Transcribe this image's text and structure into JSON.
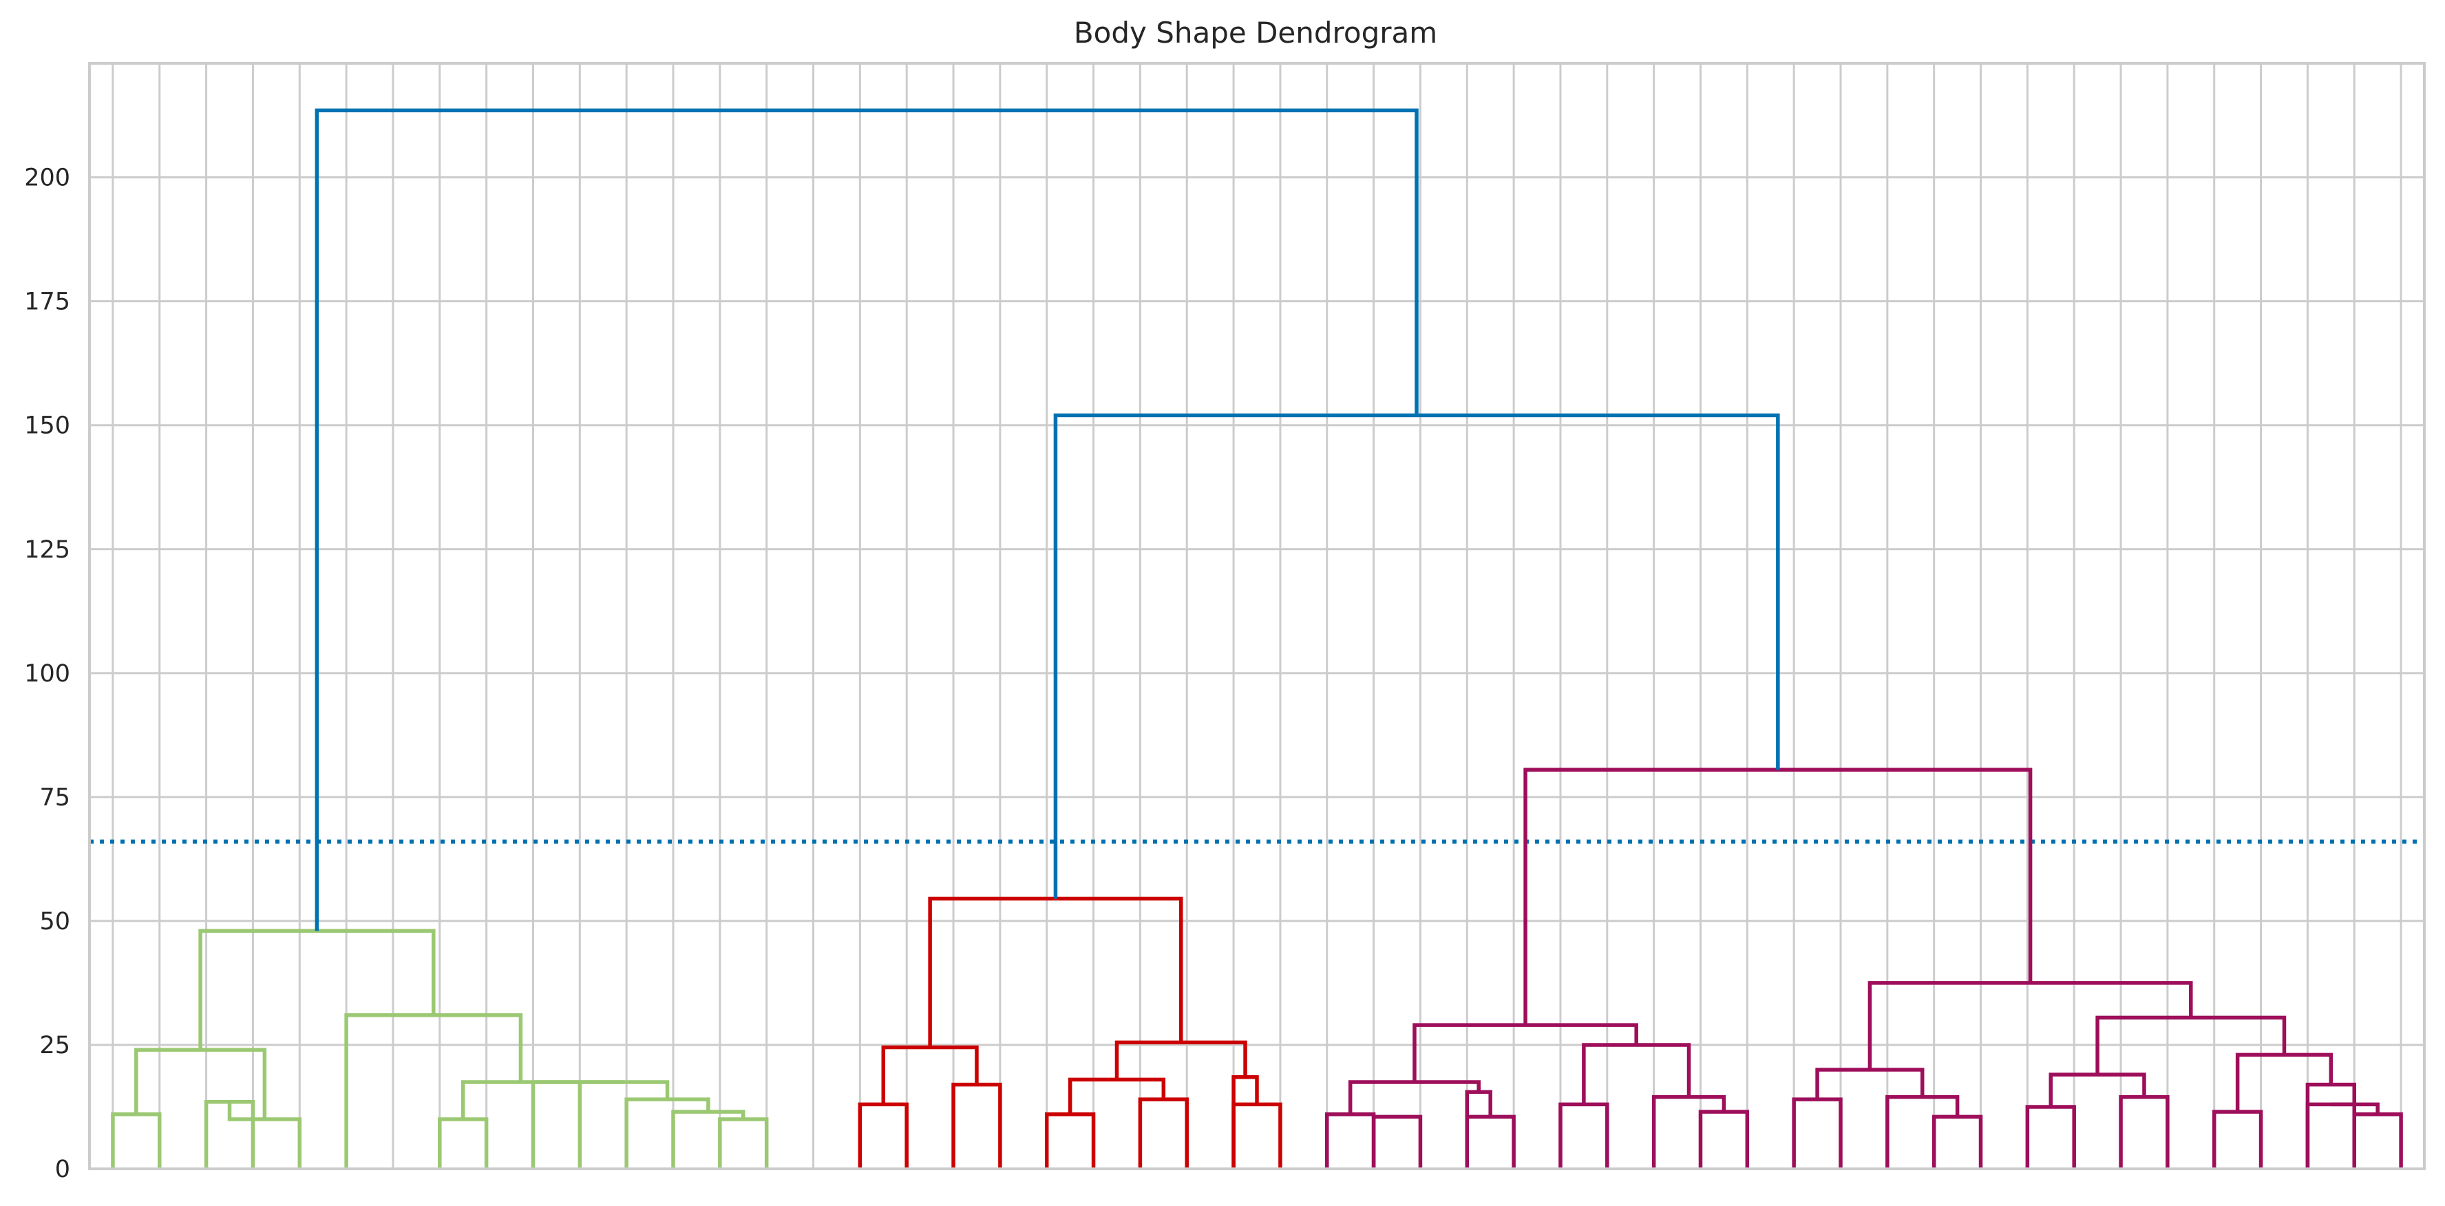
{
  "chart_data": {
    "type": "dendrogram",
    "title": "Body Shape Dendrogram",
    "xlabel": "",
    "ylabel": "",
    "ylim": [
      0,
      223
    ],
    "yticks": [
      0,
      25,
      50,
      75,
      100,
      125,
      150,
      175,
      200
    ],
    "grid": true,
    "leaf_count": 50,
    "threshold": 66,
    "threshold_color": "#0072b2",
    "leaf_labels_visible": false,
    "colors": {
      "above_threshold": "#0072b2",
      "cluster_green": "#9bc872",
      "cluster_red": "#cc0000",
      "cluster_magenta": "#9e0e5a"
    },
    "links": [
      {
        "x": [
          1,
          2
        ],
        "y": 11,
        "yl": 0,
        "yr": 0,
        "color": "cluster_green"
      },
      {
        "x": [
          3,
          4
        ],
        "y": 13.5,
        "yl": 0,
        "yr": 0,
        "color": "cluster_green"
      },
      {
        "x": [
          3.5,
          5
        ],
        "y": 10,
        "yl": 13.5,
        "yr": 0,
        "color": "cluster_green"
      },
      {
        "x": [
          1.5,
          4.25
        ],
        "y": 24,
        "yl": 11,
        "yr": 10,
        "color": "cluster_green"
      },
      {
        "x": [
          8,
          9
        ],
        "y": 10,
        "yl": 0,
        "yr": 0,
        "color": "cluster_green"
      },
      {
        "x": [
          14,
          15
        ],
        "y": 10,
        "yl": 0,
        "yr": 0,
        "color": "cluster_green"
      },
      {
        "x": [
          13,
          14.5
        ],
        "y": 11.5,
        "yl": 0,
        "yr": 10,
        "color": "cluster_green"
      },
      {
        "x": [
          12,
          13.75
        ],
        "y": 14,
        "yl": 0,
        "yr": 11.5,
        "color": "cluster_green"
      },
      {
        "x": [
          11,
          12.875
        ],
        "y": 17.5,
        "yl": 0,
        "yr": 14,
        "color": "cluster_green"
      },
      {
        "x": [
          10,
          11.9375
        ],
        "y": 17.5,
        "yl": 0,
        "yr": 17.5,
        "color": "cluster_green"
      },
      {
        "x": [
          8.5,
          10.96875
        ],
        "y": 17.5,
        "yl": 10,
        "yr": 17.5,
        "color": "cluster_green"
      },
      {
        "x": [
          6,
          9.734375
        ],
        "y": 31,
        "yl": 0,
        "yr": 17.5,
        "color": "cluster_green"
      },
      {
        "x": [
          2.875,
          7.8671875
        ],
        "y": 48,
        "yl": 24,
        "yr": 31,
        "color": "cluster_green"
      },
      {
        "x": [
          17,
          18
        ],
        "y": 13,
        "yl": 0,
        "yr": 0,
        "color": "cluster_red"
      },
      {
        "x": [
          19,
          20
        ],
        "y": 17,
        "yl": 0,
        "yr": 0,
        "color": "cluster_red"
      },
      {
        "x": [
          17.5,
          19.5
        ],
        "y": 24.5,
        "yl": 13,
        "yr": 17,
        "color": "cluster_red"
      },
      {
        "x": [
          21,
          22
        ],
        "y": 11,
        "yl": 0,
        "yr": 0,
        "color": "cluster_red"
      },
      {
        "x": [
          23,
          24
        ],
        "y": 14,
        "yl": 0,
        "yr": 0,
        "color": "cluster_red"
      },
      {
        "x": [
          21.5,
          23.5
        ],
        "y": 18,
        "yl": 11,
        "yr": 14,
        "color": "cluster_red"
      },
      {
        "x": [
          25,
          26
        ],
        "y": 13,
        "yl": 0,
        "yr": 0,
        "color": "cluster_red"
      },
      {
        "x": [
          25,
          25.5
        ],
        "y": 18.5,
        "yl": 0,
        "yr": 13,
        "color": "cluster_red"
      },
      {
        "x": [
          22.5,
          25.25
        ],
        "y": 25.5,
        "yl": 18,
        "yr": 18.5,
        "color": "cluster_red"
      },
      {
        "x": [
          18.5,
          23.875
        ],
        "y": 54.5,
        "yl": 24.5,
        "yr": 25.5,
        "color": "cluster_red"
      },
      {
        "x": [
          27,
          28
        ],
        "y": 11,
        "yl": 0,
        "yr": 0,
        "color": "cluster_magenta"
      },
      {
        "x": [
          28,
          29
        ],
        "y": 10.5,
        "yl": 0,
        "yr": 0,
        "color": "cluster_magenta"
      },
      {
        "x": [
          30,
          31
        ],
        "y": 10.5,
        "yl": 0,
        "yr": 0,
        "color": "cluster_magenta"
      },
      {
        "x": [
          30,
          30.5
        ],
        "y": 15.5,
        "yl": 0,
        "yr": 10.5,
        "color": "cluster_magenta"
      },
      {
        "x": [
          27.5,
          30.25
        ],
        "y": 17.5,
        "yl": 11,
        "yr": 15.5,
        "color": "cluster_magenta"
      },
      {
        "x": [
          32,
          33
        ],
        "y": 13,
        "yl": 0,
        "yr": 0,
        "color": "cluster_magenta"
      },
      {
        "x": [
          35,
          36
        ],
        "y": 11.5,
        "yl": 0,
        "yr": 0,
        "color": "cluster_magenta"
      },
      {
        "x": [
          34,
          35.5
        ],
        "y": 14.5,
        "yl": 0,
        "yr": 11.5,
        "color": "cluster_magenta"
      },
      {
        "x": [
          32.5,
          34.75
        ],
        "y": 25,
        "yl": 13,
        "yr": 14.5,
        "color": "cluster_magenta"
      },
      {
        "x": [
          28.875,
          33.625
        ],
        "y": 29,
        "yl": 17.5,
        "yr": 25,
        "color": "cluster_magenta"
      },
      {
        "x": [
          37,
          38
        ],
        "y": 14,
        "yl": 0,
        "yr": 0,
        "color": "cluster_magenta"
      },
      {
        "x": [
          40,
          41
        ],
        "y": 10.5,
        "yl": 0,
        "yr": 0,
        "color": "cluster_magenta"
      },
      {
        "x": [
          39,
          40.5
        ],
        "y": 14.5,
        "yl": 0,
        "yr": 10.5,
        "color": "cluster_magenta"
      },
      {
        "x": [
          37.5,
          39.75
        ],
        "y": 20,
        "yl": 14,
        "yr": 14.5,
        "color": "cluster_magenta"
      },
      {
        "x": [
          42,
          43
        ],
        "y": 12.5,
        "yl": 0,
        "yr": 0,
        "color": "cluster_magenta"
      },
      {
        "x": [
          44,
          45
        ],
        "y": 14.5,
        "yl": 0,
        "yr": 0,
        "color": "cluster_magenta"
      },
      {
        "x": [
          42.5,
          44.5
        ],
        "y": 19,
        "yl": 12.5,
        "yr": 14.5,
        "color": "cluster_magenta"
      },
      {
        "x": [
          46,
          47
        ],
        "y": 11.5,
        "yl": 0,
        "yr": 0,
        "color": "cluster_magenta"
      },
      {
        "x": [
          48,
          49
        ],
        "y": 13,
        "yl": 0,
        "yr": 0,
        "color": "cluster_magenta"
      },
      {
        "x": [
          49,
          50
        ],
        "y": 11,
        "yl": 0,
        "yr": 0,
        "color": "cluster_magenta"
      },
      {
        "x": [
          48.5,
          49.5
        ],
        "y": 13,
        "yl": 13,
        "yr": 11,
        "color": "cluster_magenta"
      },
      {
        "x": [
          48,
          49
        ],
        "y": 17,
        "yl": 0,
        "yr": 13,
        "color": "cluster_magenta"
      },
      {
        "x": [
          46.5,
          48.5
        ],
        "y": 23,
        "yl": 11.5,
        "yr": 17,
        "color": "cluster_magenta"
      },
      {
        "x": [
          43.5,
          47.5
        ],
        "y": 30.5,
        "yl": 19,
        "yr": 23,
        "color": "cluster_magenta"
      },
      {
        "x": [
          38.625,
          45.5
        ],
        "y": 37.5,
        "yl": 20,
        "yr": 30.5,
        "color": "cluster_magenta"
      },
      {
        "x": [
          31.25,
          42.0625
        ],
        "y": 80.5,
        "yl": 29,
        "yr": 37.5,
        "color": "cluster_magenta"
      },
      {
        "x": [
          21.1875,
          36.65625
        ],
        "y": 152,
        "yl": 54.5,
        "yr": 80.5,
        "color": "above_threshold"
      },
      {
        "x": [
          5.37,
          28.92
        ],
        "y": 213.5,
        "yl": 48,
        "yr": 152,
        "color": "above_threshold"
      }
    ]
  }
}
